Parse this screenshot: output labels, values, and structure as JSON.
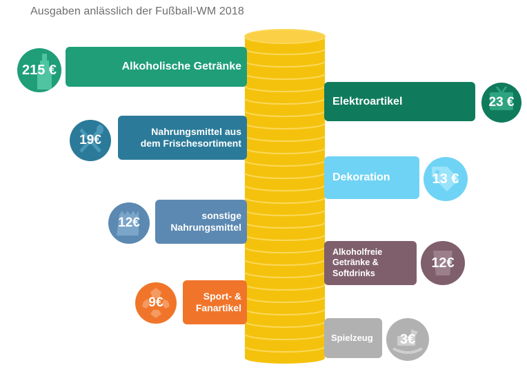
{
  "title": "Ausgaben anlässlich der Fußball-WM 2018",
  "colors": {
    "alkohol": "#1f9e78",
    "elektro": "#0f7b5c",
    "frische": "#2b7a99",
    "deko": "#6fd3f5",
    "sonstige": "#5b89b2",
    "softdrinks": "#7f5f6b",
    "sport": "#f0752a",
    "spielzeug": "#b1b1b1",
    "coin": "#f4c20d",
    "coin_edge": "#fbd85a"
  },
  "chart_data": {
    "type": "bar",
    "title": "Ausgaben anlässlich der Fußball-WM 2018",
    "unit": "€",
    "categories": [
      "Alkoholische Getränke",
      "Elektroartikel",
      "Nahrungsmittel aus dem Frischesortiment",
      "Dekoration",
      "sonstige Nahrungsmittel",
      "Alkoholfreie Getränke & Softdrinks",
      "Sport- & Fanartikel",
      "Spielzeug"
    ],
    "values": [
      215,
      23,
      19,
      13,
      12,
      12,
      9,
      3
    ],
    "value_labels": [
      "215 €",
      "23 €",
      "19€",
      "13 €",
      "12€",
      "12€",
      "9€",
      "3€"
    ]
  },
  "items": [
    {
      "label": "Alkoholische Getränke",
      "value_label": "215 €",
      "icon": "bottle-icon"
    },
    {
      "label": "Elektroartikel",
      "value_label": "23 €",
      "icon": "tv-icon"
    },
    {
      "label_line1": "Nahrungsmittel aus",
      "label_line2": "dem Frischesortiment",
      "value_label": "19€",
      "icon": "cutlery-icon"
    },
    {
      "label": "Dekoration",
      "value_label": "13 €",
      "icon": "tag-icon"
    },
    {
      "label_line1": "sonstige",
      "label_line2": "Nahrungsmittel",
      "value_label": "12€",
      "icon": "grocery-bag-icon"
    },
    {
      "label_line1": "Alkoholfreie",
      "label_line2": "Getränke &",
      "label_line3": "Softdrinks",
      "value_label": "12€",
      "icon": "cup-icon"
    },
    {
      "label_line1": "Sport- &",
      "label_line2": "Fanartikel",
      "value_label": "9€",
      "icon": "soccer-ball-icon"
    },
    {
      "label": "Spielzeug",
      "value_label": "3€",
      "icon": "rocking-horse-icon"
    }
  ]
}
